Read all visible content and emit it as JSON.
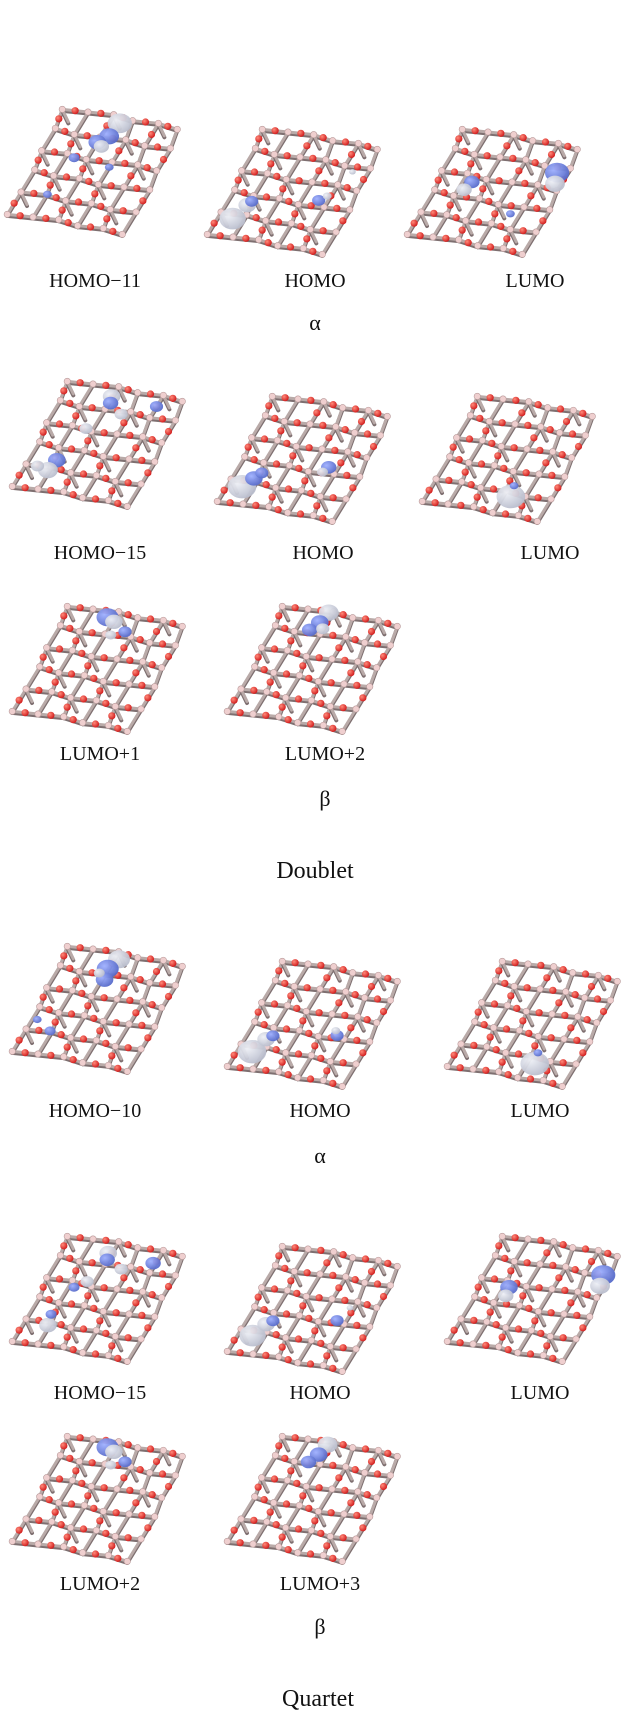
{
  "figure": {
    "doublet": {
      "alpha": {
        "orbitals": [
          {
            "label": "HOMO−11",
            "lobes": [
              [
                0.5,
                0.05,
                1.1,
                "light"
              ],
              [
                0.47,
                0.18,
                0.9,
                "blue"
              ],
              [
                0.4,
                0.25,
                0.8,
                "blue"
              ],
              [
                0.45,
                0.28,
                0.7,
                "light"
              ],
              [
                0.28,
                0.42,
                0.5,
                "blue"
              ],
              [
                0.6,
                0.45,
                0.4,
                "blue"
              ],
              [
                0.22,
                0.78,
                0.4,
                "blue"
              ]
            ]
          },
          {
            "label": "HOMO",
            "lobes": [
              [
                0.12,
                0.84,
                1.2,
                "light"
              ],
              [
                0.18,
                0.7,
                0.8,
                "light"
              ],
              [
                0.2,
                0.66,
                0.6,
                "blue"
              ],
              [
                0.73,
                0.55,
                0.6,
                "blue"
              ],
              [
                0.78,
                0.5,
                0.4,
                "light"
              ],
              [
                0.88,
                0.25,
                0.3,
                "light"
              ]
            ]
          },
          {
            "label": "LUMO",
            "lobes": [
              [
                0.92,
                0.25,
                1.1,
                "blue"
              ],
              [
                0.95,
                0.35,
                0.9,
                "light"
              ],
              [
                0.28,
                0.46,
                0.7,
                "blue"
              ],
              [
                0.25,
                0.54,
                0.7,
                "light"
              ],
              [
                0.72,
                0.68,
                0.4,
                "blue"
              ]
            ]
          }
        ],
        "symbol": "α"
      },
      "beta": {
        "orbitals": [
          {
            "label": "HOMO−15",
            "lobes": [
              [
                0.4,
                0.08,
                0.8,
                "light"
              ],
              [
                0.42,
                0.14,
                0.7,
                "blue"
              ],
              [
                0.8,
                0.1,
                0.6,
                "blue"
              ],
              [
                0.55,
                0.22,
                0.6,
                "light"
              ],
              [
                0.33,
                0.4,
                0.6,
                "light"
              ],
              [
                0.23,
                0.72,
                0.8,
                "blue"
              ],
              [
                0.2,
                0.82,
                0.9,
                "light"
              ],
              [
                0.1,
                0.8,
                0.6,
                "light"
              ]
            ]
          },
          {
            "label": "HOMO",
            "lobes": [
              [
                0.12,
                0.85,
                1.3,
                "light"
              ],
              [
                0.18,
                0.76,
                0.8,
                "blue"
              ],
              [
                0.22,
                0.7,
                0.6,
                "blue"
              ],
              [
                0.73,
                0.55,
                0.7,
                "blue"
              ],
              [
                0.7,
                0.6,
                0.5,
                "light"
              ]
            ]
          },
          {
            "label": "LUMO",
            "lobes": [
              [
                0.67,
                0.84,
                1.3,
                "light"
              ],
              [
                0.65,
                0.74,
                0.4,
                "blue"
              ]
            ]
          },
          {
            "label": "LUMO+1",
            "lobes": [
              [
                0.35,
                0.05,
                1.0,
                "blue"
              ],
              [
                0.42,
                0.08,
                0.8,
                "light"
              ],
              [
                0.55,
                0.15,
                0.6,
                "blue"
              ],
              [
                0.45,
                0.2,
                0.5,
                "light"
              ]
            ]
          },
          {
            "label": "LUMO+2",
            "lobes": [
              [
                0.38,
                0.0,
                0.9,
                "light"
              ],
              [
                0.35,
                0.1,
                0.8,
                "blue"
              ],
              [
                0.3,
                0.18,
                0.7,
                "blue"
              ],
              [
                0.4,
                0.15,
                0.6,
                "light"
              ]
            ]
          }
        ],
        "symbol": "β"
      },
      "title": "Doublet"
    },
    "quartet": {
      "alpha": {
        "orbitals": [
          {
            "label": "HOMO−10",
            "lobes": [
              [
                0.45,
                0.05,
                1.0,
                "light"
              ],
              [
                0.4,
                0.15,
                1.0,
                "blue"
              ],
              [
                0.42,
                0.25,
                0.8,
                "blue"
              ],
              [
                0.35,
                0.2,
                0.5,
                "light"
              ],
              [
                0.2,
                0.78,
                0.5,
                "blue"
              ],
              [
                0.05,
                0.7,
                0.4,
                "blue"
              ]
            ]
          },
          {
            "label": "HOMO",
            "lobes": [
              [
                0.12,
                0.85,
                1.3,
                "light"
              ],
              [
                0.18,
                0.72,
                0.8,
                "light"
              ],
              [
                0.22,
                0.68,
                0.6,
                "blue"
              ],
              [
                0.73,
                0.58,
                0.6,
                "blue"
              ],
              [
                0.7,
                0.54,
                0.4,
                "light"
              ]
            ]
          },
          {
            "label": "LUMO",
            "lobes": [
              [
                0.67,
                0.86,
                1.3,
                "light"
              ],
              [
                0.65,
                0.76,
                0.4,
                "blue"
              ]
            ]
          }
        ],
        "symbol": "α"
      },
      "beta": {
        "orbitals": [
          {
            "label": "HOMO−15",
            "lobes": [
              [
                0.38,
                0.1,
                0.8,
                "light"
              ],
              [
                0.4,
                0.16,
                0.7,
                "blue"
              ],
              [
                0.78,
                0.12,
                0.7,
                "blue"
              ],
              [
                0.55,
                0.22,
                0.6,
                "light"
              ],
              [
                0.33,
                0.38,
                0.6,
                "light"
              ],
              [
                0.25,
                0.45,
                0.5,
                "blue"
              ],
              [
                0.2,
                0.82,
                0.8,
                "light"
              ],
              [
                0.18,
                0.72,
                0.5,
                "blue"
              ]
            ]
          },
          {
            "label": "HOMO",
            "lobes": [
              [
                0.12,
                0.84,
                1.2,
                "light"
              ],
              [
                0.18,
                0.72,
                0.8,
                "light"
              ],
              [
                0.22,
                0.68,
                0.6,
                "blue"
              ],
              [
                0.73,
                0.58,
                0.6,
                "blue"
              ],
              [
                0.78,
                0.45,
                0.3,
                "light"
              ]
            ]
          },
          {
            "label": "LUMO",
            "lobes": [
              [
                0.95,
                0.2,
                1.1,
                "blue"
              ],
              [
                0.97,
                0.3,
                0.9,
                "light"
              ],
              [
                0.25,
                0.45,
                0.8,
                "blue"
              ],
              [
                0.26,
                0.53,
                0.7,
                "light"
              ]
            ]
          },
          {
            "label": "LUMO+2",
            "lobes": [
              [
                0.35,
                0.05,
                1.0,
                "blue"
              ],
              [
                0.42,
                0.08,
                0.8,
                "light"
              ],
              [
                0.55,
                0.15,
                0.6,
                "blue"
              ],
              [
                0.45,
                0.2,
                0.5,
                "light"
              ]
            ]
          },
          {
            "label": "LUMO+3",
            "lobes": [
              [
                0.38,
                0.02,
                0.9,
                "light"
              ],
              [
                0.35,
                0.12,
                0.8,
                "blue"
              ],
              [
                0.3,
                0.2,
                0.7,
                "blue"
              ]
            ]
          }
        ],
        "symbol": "β"
      },
      "title": "Quartet"
    }
  },
  "colors": {
    "bond": "#b9aaa8",
    "bond_dark": "#7e6f70",
    "atom_b": "#efcfcf",
    "atom_o": "#d21f1f",
    "lobe_blue": "#5468c8",
    "lobe_light": "#b8bccc"
  }
}
